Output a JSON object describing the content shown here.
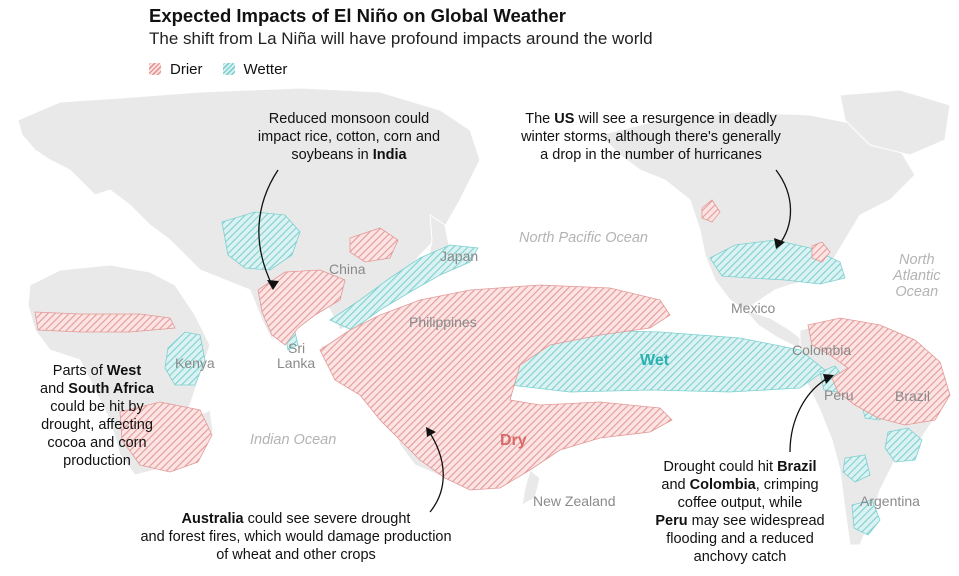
{
  "header": {
    "title": "Expected Impacts of El Niño on Global Weather",
    "subtitle": "The shift from La Niña will have profound impacts around the world"
  },
  "legend": {
    "drier": "Drier",
    "wetter": "Wetter"
  },
  "colors": {
    "drier": "#e8a3a2",
    "wetter": "#8fd4d4",
    "land": "#e9e9e9",
    "ocean": "#ffffff"
  },
  "regions": {
    "dry": "Dry",
    "wet": "Wet"
  },
  "places": {
    "china": "China",
    "japan": "Japan",
    "philippines": "Philippines",
    "sri1": "Sri",
    "sri2": "Lanka",
    "kenya": "Kenya",
    "mexico": "Mexico",
    "colombia": "Colombia",
    "peru": "Peru",
    "brazil": "Brazil",
    "argentina": "Argentina",
    "new_zealand": "New Zealand"
  },
  "oceans": {
    "north_pacific": "North Pacific Ocean",
    "indian": "Indian Ocean",
    "na1": "North",
    "na2": "Atlantic",
    "na3": "Ocean"
  },
  "annotations": {
    "india": {
      "l1": "Reduced monsoon could",
      "l2": "impact rice, cotton, corn and",
      "l3a": "soybeans in ",
      "l3b": "India"
    },
    "us": {
      "l1a": "The ",
      "l1b": "US",
      "l1c": " will see a resurgence in deadly",
      "l2": "winter storms, although there's generally",
      "l3": "a drop in the number of hurricanes"
    },
    "africa": {
      "l1a": "Parts of ",
      "l1b": "West",
      "l2a": "and ",
      "l2b": "South Africa",
      "l3": "could be hit by",
      "l4": "drought, affecting",
      "l5": "cocoa and corn",
      "l6": "production"
    },
    "australia": {
      "l1a": "Australia",
      "l1b": " could see severe drought",
      "l2": "and forest fires, which would damage production",
      "l3": "of wheat and other crops"
    },
    "south_america": {
      "l1a": "Drought could hit ",
      "l1b": "Brazil",
      "l2a": "and ",
      "l2b": "Colombia",
      "l2c": ", crimping",
      "l3": "coffee output, while",
      "l4a": "Peru",
      "l4b": " may see widespread",
      "l5": "flooding and a reduced",
      "l6": "anchovy catch"
    }
  }
}
